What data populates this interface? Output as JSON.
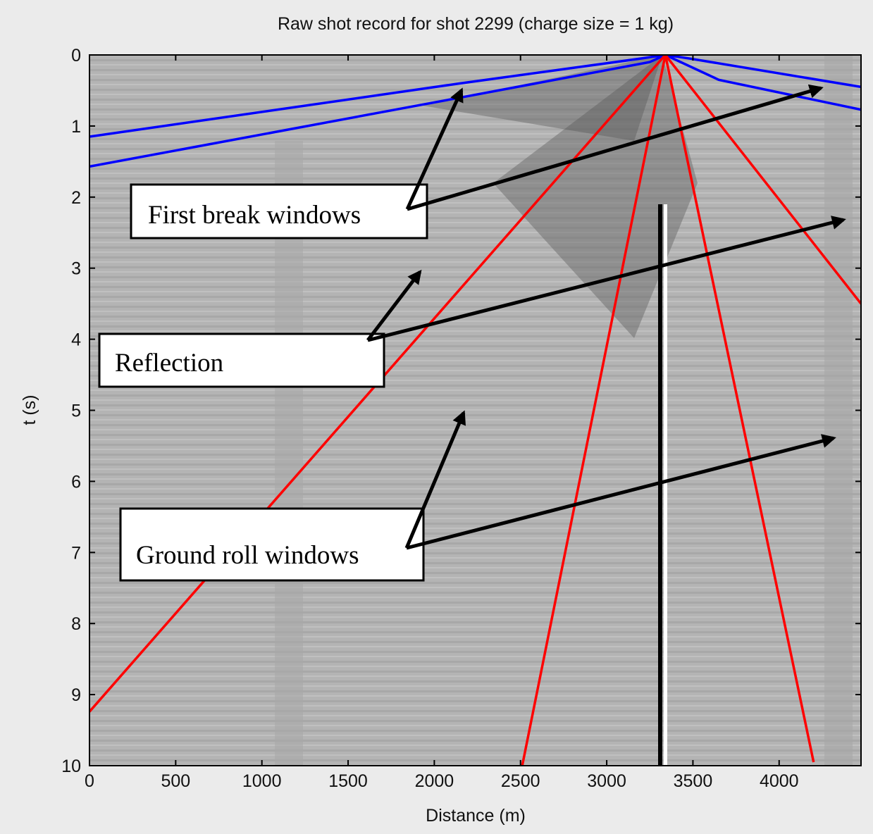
{
  "chart_data": {
    "type": "line",
    "title": "Raw shot record for shot 2299 (charge size = 1 kg)",
    "xlabel": "Distance (m)",
    "ylabel": "t (s)",
    "xlim": [
      0,
      4475
    ],
    "ylim": [
      0,
      10
    ],
    "y_inverted": true,
    "xticks": [
      0,
      500,
      1000,
      1500,
      2000,
      2500,
      3000,
      3500,
      4000
    ],
    "yticks": [
      0,
      1,
      2,
      3,
      4,
      5,
      6,
      7,
      8,
      9,
      10
    ],
    "series": [
      {
        "color": "#0000ff",
        "x": [
          0,
          2150,
          3200,
          3340,
          3480,
          4475
        ],
        "values": [
          1.15,
          0.4,
          0.05,
          0,
          0.05,
          0.45
        ]
      },
      {
        "color": "#0000ff",
        "x": [
          0,
          2150,
          3250,
          3340,
          3650,
          4475
        ],
        "values": [
          1.57,
          0.6,
          0.1,
          0,
          0.35,
          0.77
        ]
      },
      {
        "color": "#ff0000",
        "x": [
          3340,
          0
        ],
        "values": [
          0,
          9.24
        ]
      },
      {
        "color": "#ff0000",
        "x": [
          3340,
          2510
        ],
        "values": [
          0,
          10
        ]
      },
      {
        "color": "#ff0000",
        "x": [
          3340,
          4200
        ],
        "values": [
          0,
          9.95
        ]
      },
      {
        "color": "#ff0000",
        "x": [
          3340,
          4475
        ],
        "values": [
          0,
          3.5
        ]
      }
    ],
    "annotations": [
      "First break windows",
      "Reflection",
      "Ground roll windows"
    ]
  }
}
